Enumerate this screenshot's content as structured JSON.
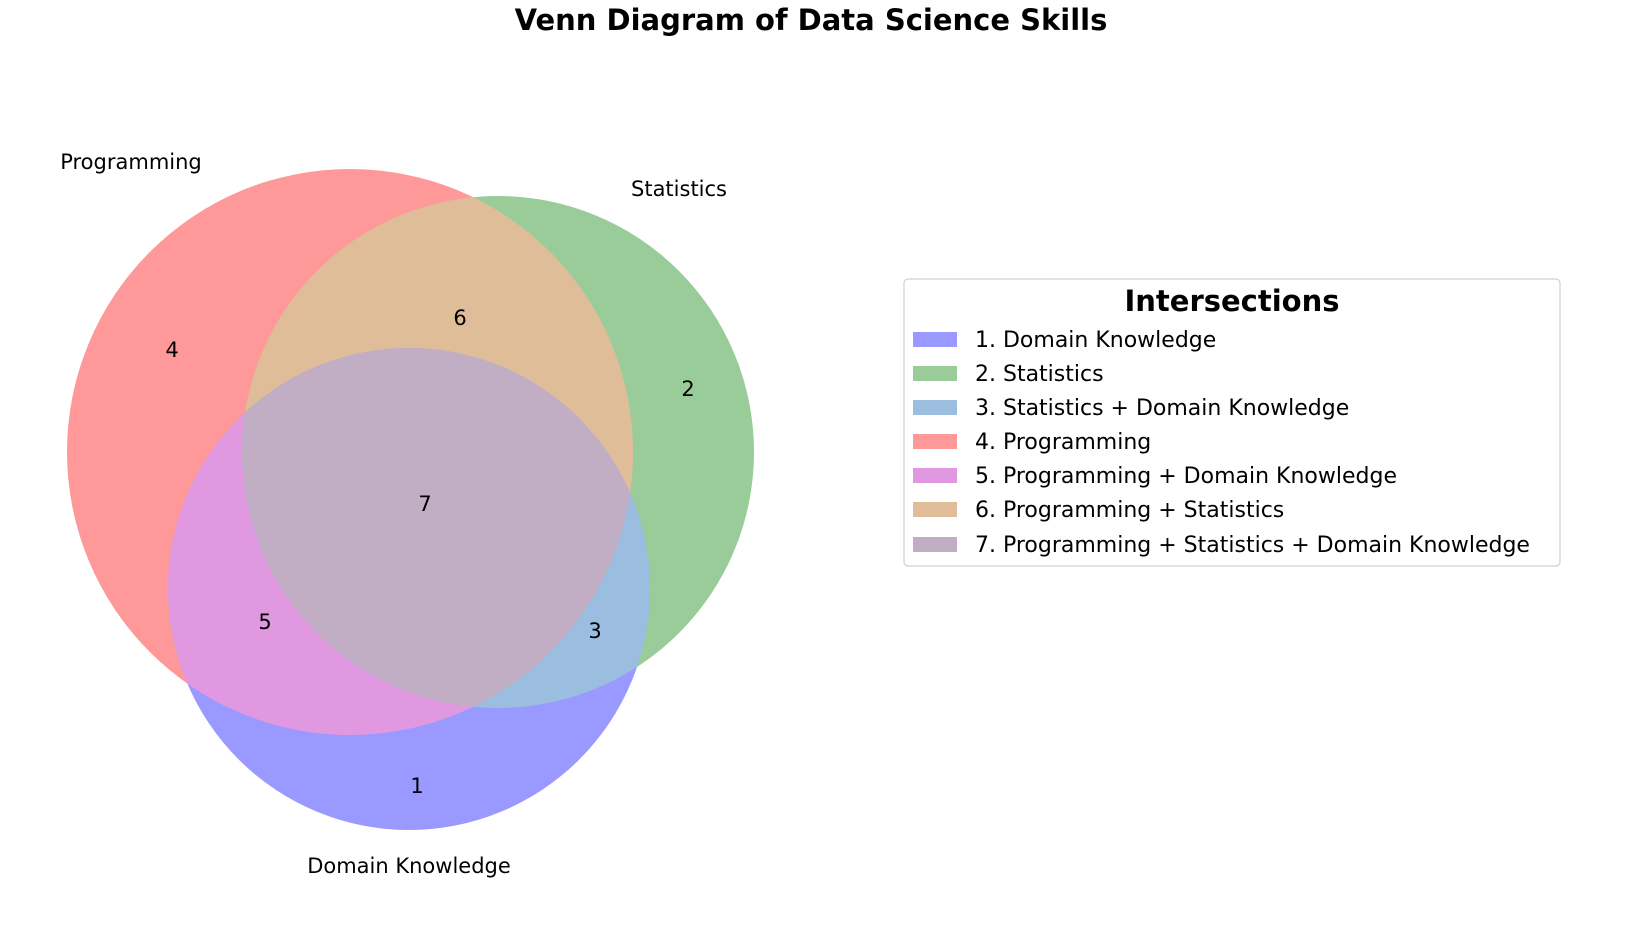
{
  "title": "Venn Diagram of Data Science Skills",
  "sets": {
    "a": {
      "label": "Programming",
      "color": "#ff3030"
    },
    "b": {
      "label": "Statistics",
      "color": "#2e9a2e"
    },
    "c": {
      "label": "Domain Knowledge",
      "color": "#3030ff"
    }
  },
  "regions": [
    {
      "id": "1",
      "label": "1",
      "name": "Domain Knowledge",
      "color": "#9999ff"
    },
    {
      "id": "2",
      "label": "2",
      "name": "Statistics",
      "color": "#99cc99"
    },
    {
      "id": "3",
      "label": "3",
      "name": "Statistics + Domain Knowledge",
      "color": "#9abde0"
    },
    {
      "id": "4",
      "label": "4",
      "name": "Programming",
      "color": "#ff9999"
    },
    {
      "id": "5",
      "label": "5",
      "name": "Programming + Domain Knowledge",
      "color": "#e099e0"
    },
    {
      "id": "6",
      "label": "6",
      "name": "Programming + Statistics",
      "color": "#e0bd99"
    },
    {
      "id": "7",
      "label": "7",
      "name": "Programming + Statistics + Domain Knowledge",
      "color": "#c2aec4"
    }
  ],
  "legend": {
    "title": "Intersections",
    "items": [
      "1. Domain Knowledge",
      "2. Statistics",
      "3. Statistics + Domain Knowledge",
      "4. Programming",
      "5. Programming + Domain Knowledge",
      "6. Programming + Statistics",
      "7. Programming + Statistics + Domain Knowledge"
    ]
  }
}
